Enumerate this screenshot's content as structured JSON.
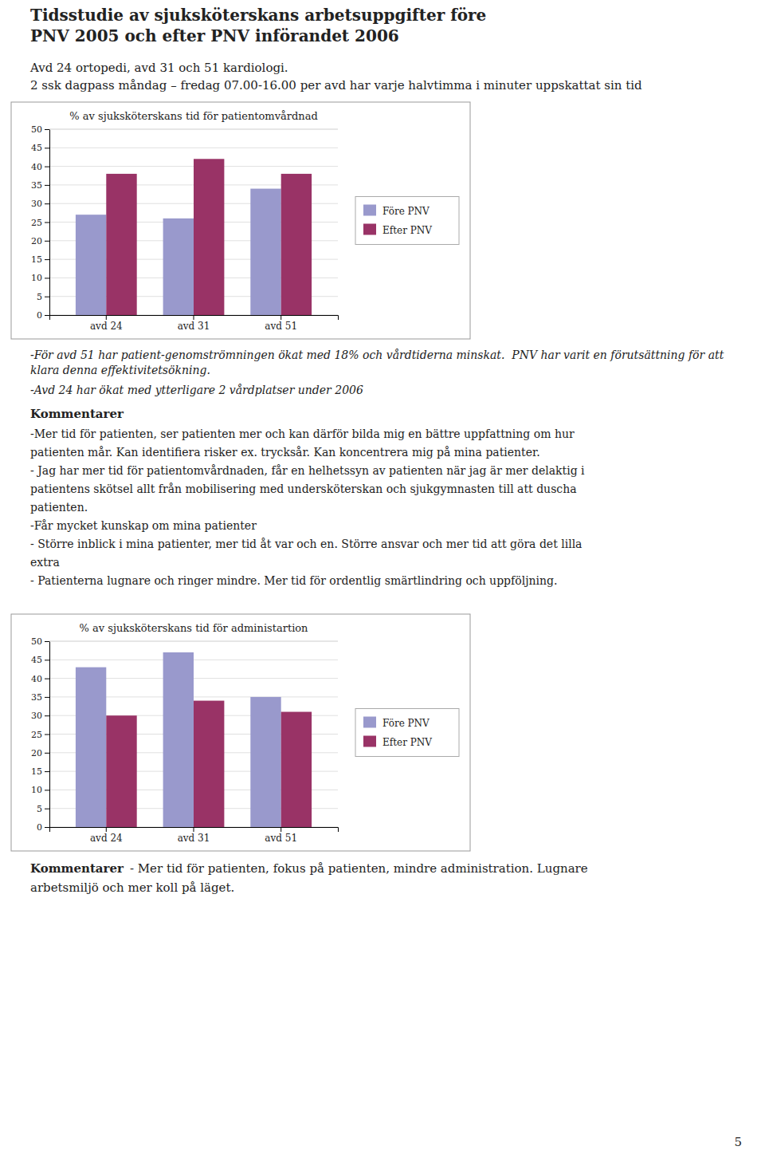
{
  "title": "Tidsstudie av sjuksköterskans arbetsuppgifter före\nPNV 2005 och efter PNV införandet 2006",
  "subtitle": [
    "Avd 24 ortopedi, avd 31 och 51 kardiologi.",
    "2 ssk dagpass måndag – fredag 07.00-16.00 per avd har varje halvtimma i minuter uppskattat sin tid"
  ],
  "chart_data": [
    {
      "type": "bar",
      "title": "% av sjuksköterskans tid för patientomvårdnad",
      "categories": [
        "avd 24",
        "avd 31",
        "avd 51"
      ],
      "series": [
        {
          "name": "Före PNV",
          "color": "#9999cc",
          "values": [
            27,
            26,
            34
          ]
        },
        {
          "name": "Efter PNV",
          "color": "#993366",
          "values": [
            38,
            42,
            38
          ]
        }
      ],
      "ylim": [
        0,
        50
      ],
      "yticks": [
        0,
        5,
        10,
        15,
        20,
        25,
        30,
        35,
        40,
        45,
        50
      ],
      "grid": true,
      "legend": "right"
    },
    {
      "type": "bar",
      "title": "% av sjuksköterskans tid för administartion",
      "categories": [
        "avd 24",
        "avd 31",
        "avd 51"
      ],
      "series": [
        {
          "name": "Före PNV",
          "color": "#9999cc",
          "values": [
            43,
            47,
            35
          ]
        },
        {
          "name": "Efter PNV",
          "color": "#993366",
          "values": [
            30,
            34,
            31
          ]
        }
      ],
      "ylim": [
        0,
        50
      ],
      "yticks": [
        0,
        5,
        10,
        15,
        20,
        25,
        30,
        35,
        40,
        45,
        50
      ],
      "grid": true,
      "legend": "right"
    }
  ],
  "notes": [
    "-För avd 51 har patient-genomströmningen ökat med 18% och vårdtiderna minskat.  PNV har varit en förutsättning för att  klara denna effektivitetsökning.",
    "-Avd 24 har ökat med ytterligare 2 vårdplatser under 2006"
  ],
  "comments1": {
    "heading": "Kommentarer",
    "lines": [
      "-Mer tid för patienten, ser patienten mer och kan därför bilda mig en bättre uppfattning om hur",
      "patienten mår. Kan identifiera risker ex. trycksår. Kan koncentrera mig på mina patienter.",
      "- Jag har mer tid för patientomvårdnaden, får en helhetssyn av patienten när jag är mer delaktig i",
      "patientens skötsel allt från mobilisering med undersköterskan och sjukgymnasten till att duscha",
      "patienten.",
      "-Får mycket kunskap om mina patienter",
      "- Större inblick i mina patienter, mer tid åt var och en. Större ansvar och mer tid att göra det lilla",
      "extra",
      "- Patienterna lugnare och ringer mindre. Mer tid för ordentlig smärtlindring och uppföljning."
    ]
  },
  "comments2": {
    "heading": "Kommentarer",
    "lines": [
      "- Mer tid för patienten, fokus på patienten, mindre administration. Lugnare",
      "arbetsmiljö och mer koll på läget."
    ]
  },
  "page_number": "5"
}
